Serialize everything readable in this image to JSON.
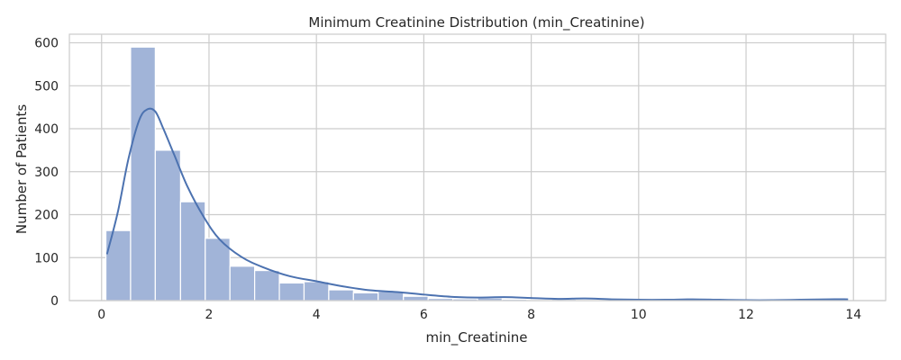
{
  "chart_data": {
    "type": "bar",
    "title": "Minimum Creatinine Distribution (min_Creatinine)",
    "xlabel": "min_Creatinine",
    "ylabel": "Number of Patients",
    "xlim": [
      -0.6,
      14.6
    ],
    "ylim": [
      0,
      620
    ],
    "xticks": [
      0,
      2,
      4,
      6,
      8,
      10,
      12,
      14
    ],
    "yticks": [
      0,
      100,
      200,
      300,
      400,
      500,
      600
    ],
    "grid": true,
    "colors": {
      "bar": "#a1b4d8",
      "kde": "#4c72b0",
      "grid": "#cccccc"
    },
    "bins": [
      {
        "x0": 0.08,
        "x1": 0.54,
        "count": 163
      },
      {
        "x0": 0.54,
        "x1": 1.0,
        "count": 590
      },
      {
        "x0": 1.0,
        "x1": 1.47,
        "count": 350
      },
      {
        "x0": 1.47,
        "x1": 1.93,
        "count": 230
      },
      {
        "x0": 1.93,
        "x1": 2.39,
        "count": 145
      },
      {
        "x0": 2.39,
        "x1": 2.85,
        "count": 80
      },
      {
        "x0": 2.85,
        "x1": 3.31,
        "count": 70
      },
      {
        "x0": 3.31,
        "x1": 3.77,
        "count": 41
      },
      {
        "x0": 3.77,
        "x1": 4.23,
        "count": 44
      },
      {
        "x0": 4.23,
        "x1": 4.69,
        "count": 25
      },
      {
        "x0": 4.69,
        "x1": 5.15,
        "count": 18
      },
      {
        "x0": 5.15,
        "x1": 5.62,
        "count": 21
      },
      {
        "x0": 5.62,
        "x1": 6.08,
        "count": 10
      },
      {
        "x0": 6.08,
        "x1": 6.54,
        "count": 5
      },
      {
        "x0": 6.54,
        "x1": 7.0,
        "count": 4
      },
      {
        "x0": 7.0,
        "x1": 7.46,
        "count": 6
      },
      {
        "x0": 7.46,
        "x1": 7.92,
        "count": 3
      },
      {
        "x0": 7.92,
        "x1": 8.38,
        "count": 2
      },
      {
        "x0": 8.38,
        "x1": 8.84,
        "count": 3
      },
      {
        "x0": 8.84,
        "x1": 9.3,
        "count": 2
      },
      {
        "x0": 9.3,
        "x1": 9.77,
        "count": 1
      },
      {
        "x0": 9.77,
        "x1": 10.23,
        "count": 2
      },
      {
        "x0": 10.23,
        "x1": 10.69,
        "count": 1
      },
      {
        "x0": 10.69,
        "x1": 11.15,
        "count": 2
      },
      {
        "x0": 11.15,
        "x1": 11.61,
        "count": 2
      },
      {
        "x0": 11.61,
        "x1": 12.07,
        "count": 1
      },
      {
        "x0": 12.07,
        "x1": 12.53,
        "count": 1
      },
      {
        "x0": 12.53,
        "x1": 12.99,
        "count": 1
      },
      {
        "x0": 12.99,
        "x1": 13.45,
        "count": 2
      },
      {
        "x0": 13.45,
        "x1": 13.91,
        "count": 3
      }
    ],
    "kde": {
      "x": [
        0.1,
        0.3,
        0.5,
        0.7,
        0.85,
        1.0,
        1.15,
        1.35,
        1.6,
        1.9,
        2.2,
        2.6,
        3.0,
        3.5,
        4.0,
        4.5,
        5.0,
        5.5,
        6.0,
        6.5,
        7.0,
        7.5,
        8.0,
        8.5,
        9.0,
        9.5,
        10.0,
        10.5,
        11.0,
        11.5,
        12.0,
        12.5,
        13.0,
        13.5,
        13.9
      ],
      "y": [
        108,
        205,
        330,
        420,
        445,
        440,
        400,
        340,
        265,
        195,
        142,
        102,
        78,
        57,
        45,
        33,
        24,
        20,
        14,
        9,
        7,
        8,
        6,
        4,
        5,
        3,
        2,
        2,
        3,
        2,
        1,
        1,
        2,
        3,
        3
      ]
    }
  }
}
